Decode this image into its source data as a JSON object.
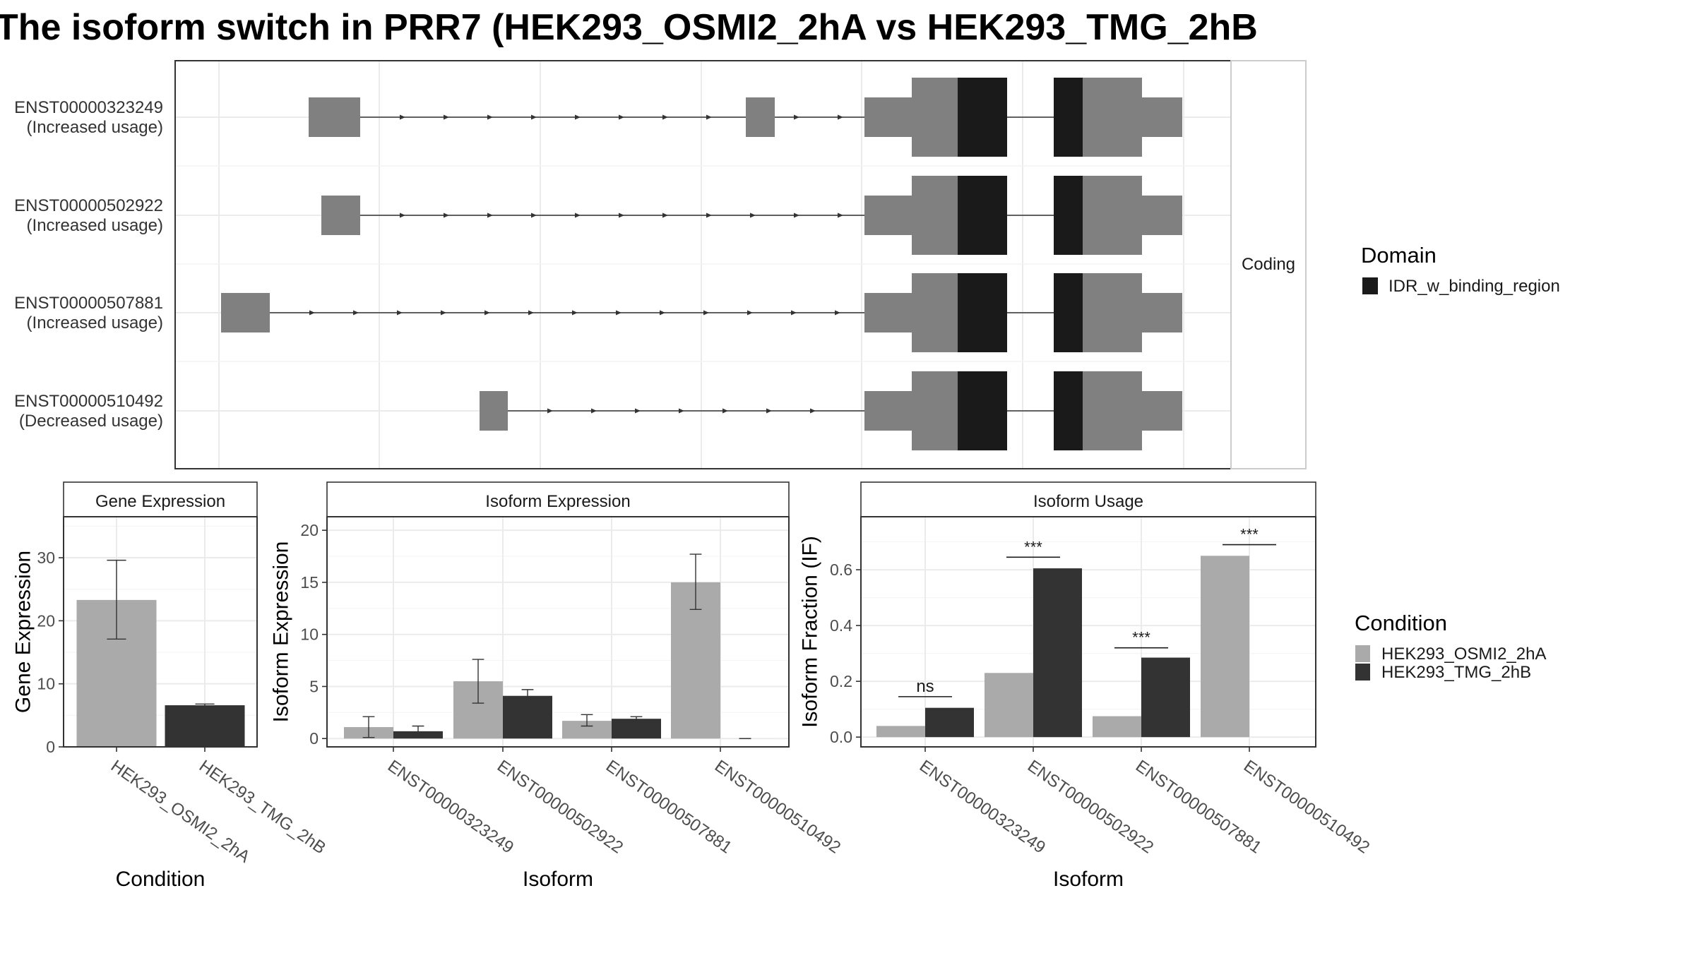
{
  "title": "The isoform switch in PRR7 (HEK293_OSMI2_2hA vs HEK293_TMG_2hB",
  "colors": {
    "exon": "#808080",
    "domain": "#1a1a1a",
    "condition_a": "#aaaaaa",
    "condition_b": "#333333",
    "grid": "#ebebeb",
    "panel_border": "#333333"
  },
  "structure": {
    "facet_label": "Coding",
    "isoforms": [
      {
        "id": "ENST00000323249",
        "usage": "(Increased usage)"
      },
      {
        "id": "ENST00000502922",
        "usage": "(Increased usage)"
      },
      {
        "id": "ENST00000507881",
        "usage": "(Increased usage)"
      },
      {
        "id": "ENST00000510492",
        "usage": "(Decreased usage)"
      }
    ]
  },
  "legends": {
    "domain": {
      "title": "Domain",
      "items": [
        "IDR_w_binding_region"
      ]
    },
    "condition": {
      "title": "Condition",
      "items": [
        "HEK293_OSMI2_2hA",
        "HEK293_TMG_2hB"
      ]
    }
  },
  "chart_data": [
    {
      "type": "bar",
      "title": "Gene Expression",
      "xlabel": "Condition",
      "ylabel": "Gene Expression",
      "ylim": [
        0,
        36.5
      ],
      "yticks": [
        0,
        10,
        20,
        30
      ],
      "categories": [
        "HEK293_OSMI2_2hA",
        "HEK293_TMG_2hB"
      ],
      "series": [
        {
          "values": [
            23.3,
            6.6
          ],
          "error_low": [
            17.1,
            6.4
          ],
          "error_high": [
            29.6,
            6.8
          ]
        }
      ]
    },
    {
      "type": "bar",
      "title": "Isoform Expression",
      "xlabel": "Isoform",
      "ylabel": "Isoform Expression",
      "ylim": [
        -0.8,
        21.3
      ],
      "yticks": [
        0,
        5,
        10,
        15,
        20
      ],
      "categories": [
        "ENST00000323249",
        "ENST00000502922",
        "ENST00000507881",
        "ENST00000510492"
      ],
      "series": [
        {
          "name": "HEK293_OSMI2_2hA",
          "values": [
            1.1,
            5.5,
            1.7,
            15.0
          ],
          "error_low": [
            0.1,
            3.4,
            1.2,
            12.4
          ],
          "error_high": [
            2.1,
            7.6,
            2.3,
            17.7
          ]
        },
        {
          "name": "HEK293_TMG_2hB",
          "values": [
            0.7,
            4.1,
            1.9,
            0.0
          ],
          "error_low": [
            0.3,
            3.5,
            1.6,
            0.0
          ],
          "error_high": [
            1.2,
            4.7,
            2.1,
            0.0
          ]
        }
      ]
    },
    {
      "type": "bar",
      "title": "Isoform Usage",
      "xlabel": "Isoform",
      "ylabel": "Isoform Fraction (IF)",
      "ylim": [
        -0.035,
        0.79
      ],
      "yticks": [
        0.0,
        0.2,
        0.4,
        0.6
      ],
      "ytick_labels": [
        "0.0",
        "0.2",
        "0.4",
        "0.6"
      ],
      "categories": [
        "ENST00000323249",
        "ENST00000502922",
        "ENST00000507881",
        "ENST00000510492"
      ],
      "series": [
        {
          "name": "HEK293_OSMI2_2hA",
          "values": [
            0.04,
            0.23,
            0.075,
            0.65
          ]
        },
        {
          "name": "HEK293_TMG_2hB",
          "values": [
            0.105,
            0.605,
            0.285,
            0.0
          ]
        }
      ],
      "significance": [
        "ns",
        "***",
        "***",
        "***"
      ],
      "significance_y": [
        0.145,
        0.645,
        0.32,
        0.69
      ]
    }
  ]
}
